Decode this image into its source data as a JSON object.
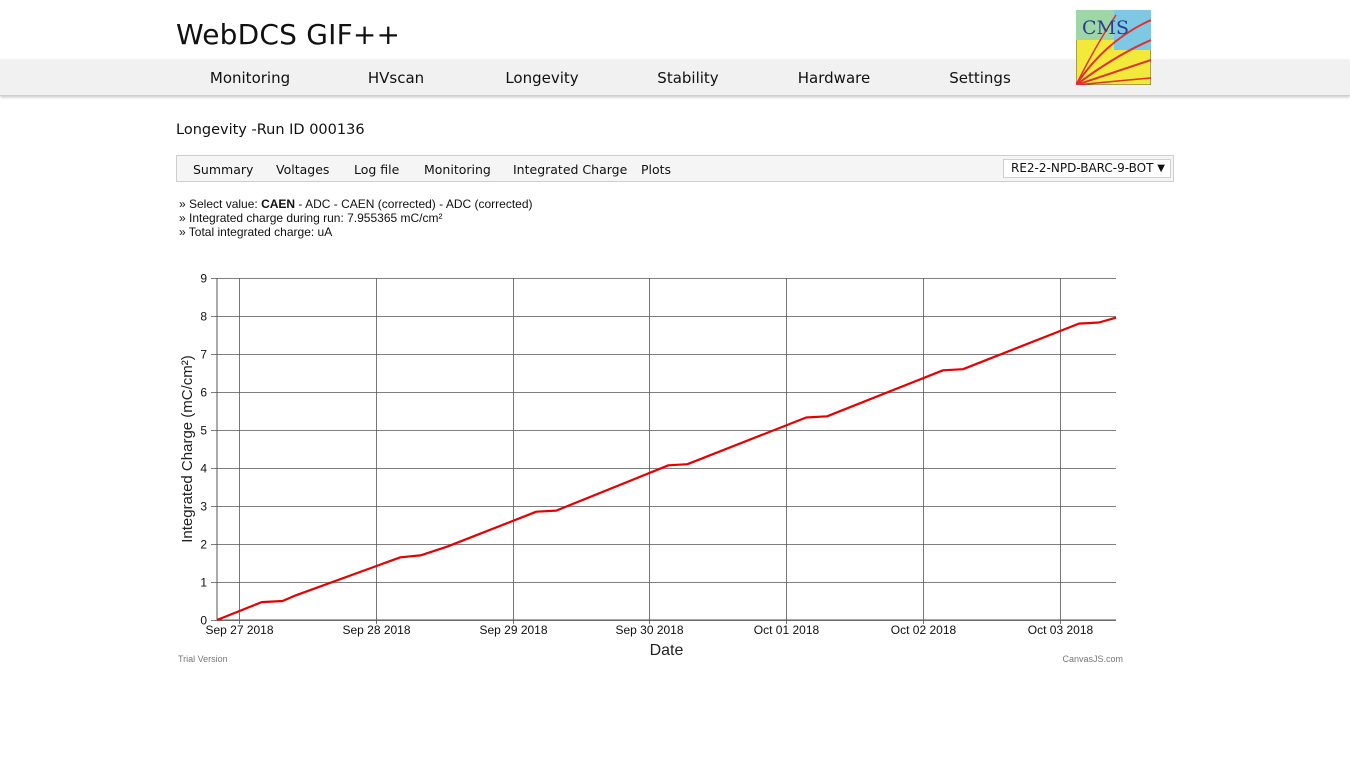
{
  "header": {
    "title": "WebDCS GIF++",
    "logo_text": "CMS"
  },
  "nav": {
    "items": [
      "Monitoring",
      "HVscan",
      "Longevity",
      "Stability",
      "Hardware",
      "Settings"
    ]
  },
  "page": {
    "run_title": "Longevity -Run ID 000136"
  },
  "tabs": [
    "Summary",
    "Voltages",
    "Log file",
    "Monitoring",
    "Integrated Charge",
    "Plots"
  ],
  "chamber_select": {
    "value": "RE2-2-NPD-BARC-9-BOT",
    "arrow": "▼"
  },
  "info": {
    "select_prefix": "» Select value: ",
    "select_active": "CAEN",
    "select_sep": " - ",
    "select_options": [
      "ADC",
      "CAEN (corrected)",
      "ADC (corrected)"
    ],
    "integrated_run": "» Integrated charge during run: 7.955365 mC/cm²",
    "total_integrated": "» Total integrated charge: uA"
  },
  "colors": {
    "series": "#e60000",
    "grid": "#555555",
    "navbar_bg": "#f1f1f1"
  },
  "chart_data": {
    "type": "line",
    "xlabel": "Date",
    "ylabel": "Integrated Charge (mC/cm²)",
    "x_ticks": [
      "Sep 27 2018",
      "Sep 28 2018",
      "Sep 29 2018",
      "Sep 30 2018",
      "Oct 01 2018",
      "Oct 02 2018",
      "Oct 03 2018"
    ],
    "y_ticks": [
      0,
      1,
      2,
      3,
      4,
      5,
      6,
      7,
      8,
      9
    ],
    "ylim": [
      0,
      9
    ],
    "xlim": [
      "2018-09-26T20:10",
      "2018-10-03T09:50"
    ],
    "grid": true,
    "series": [
      {
        "points": [
          [
            "2018-09-26T20:10",
            0.0
          ],
          [
            "2018-09-27T04:00",
            0.47
          ],
          [
            "2018-09-27T07:40",
            0.5
          ],
          [
            "2018-09-27T10:00",
            0.65
          ],
          [
            "2018-09-28T04:20",
            1.65
          ],
          [
            "2018-09-28T07:50",
            1.7
          ],
          [
            "2018-09-28T12:30",
            1.93
          ],
          [
            "2018-09-29T04:10",
            2.85
          ],
          [
            "2018-09-29T07:40",
            2.88
          ],
          [
            "2018-09-30T03:20",
            4.07
          ],
          [
            "2018-09-30T06:40",
            4.1
          ],
          [
            "2018-10-01T03:30",
            5.33
          ],
          [
            "2018-10-01T07:10",
            5.36
          ],
          [
            "2018-10-02T03:30",
            6.57
          ],
          [
            "2018-10-02T07:00",
            6.6
          ],
          [
            "2018-10-03T03:20",
            7.8
          ],
          [
            "2018-10-03T06:50",
            7.83
          ],
          [
            "2018-10-03T09:50",
            7.955365
          ]
        ]
      }
    ]
  },
  "footer": {
    "trial": "Trial Version",
    "credit": "CanvasJS.com"
  }
}
